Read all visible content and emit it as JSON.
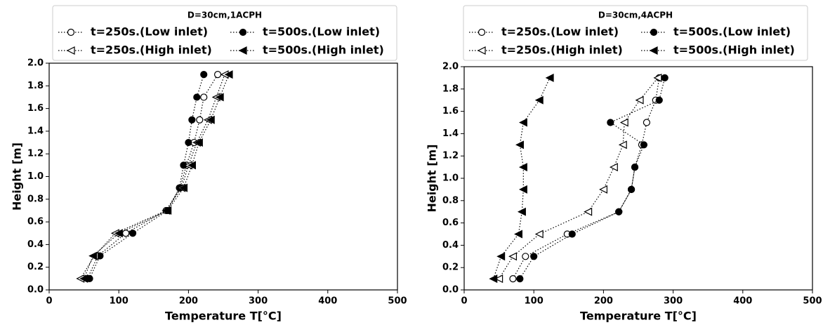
{
  "chart_data": [
    {
      "type": "line",
      "legend_title": "D=30cm,1ACPH",
      "xlabel": "Temperature T[°C]",
      "ylabel": "Height [m]",
      "y": [
        0.1,
        0.3,
        0.5,
        0.7,
        0.9,
        1.1,
        1.3,
        1.5,
        1.7,
        1.9
      ],
      "series": [
        {
          "name": "t=250s.(Low inlet)",
          "color": "#000000",
          "marker": "open-circle",
          "values": [
            55,
            70,
            110,
            168,
            188,
            197,
            208,
            216,
            222,
            242
          ]
        },
        {
          "name": "t=500s.(Low inlet)",
          "color": "#000000",
          "marker": "filled-circle",
          "values": [
            58,
            73,
            120,
            170,
            187,
            193,
            200,
            205,
            212,
            222
          ]
        },
        {
          "name": "t=250s.(High inlet)",
          "color": "#000000",
          "marker": "open-triangle-left",
          "values": [
            45,
            65,
            95,
            168,
            190,
            200,
            212,
            228,
            240,
            252
          ]
        },
        {
          "name": "t=500s.(High  inlet)",
          "color": "#000000",
          "marker": "filled-triangle-left",
          "values": [
            50,
            63,
            100,
            170,
            193,
            205,
            215,
            232,
            245,
            258
          ]
        }
      ],
      "xlim": [
        0,
        500
      ],
      "xticks": [
        0,
        100,
        200,
        300,
        400,
        500
      ],
      "ylim": [
        0,
        2
      ],
      "yticks": [
        {
          "value": 0,
          "label": "0.0"
        },
        0.2,
        0.4,
        0.6,
        0.8,
        {
          "value": 1,
          "label": "1.0"
        },
        1.2,
        1.4,
        1.6,
        1.8,
        {
          "value": 2,
          "label": "2.0"
        }
      ]
    },
    {
      "type": "line",
      "legend_title": "D=30cm,4ACPH",
      "xlabel": "Temperature T[°C]",
      "ylabel": "Height [m]",
      "y": [
        0.1,
        0.3,
        0.5,
        0.7,
        0.9,
        1.1,
        1.3,
        1.5,
        1.7,
        1.9
      ],
      "series": [
        {
          "name": "t=250s.(Low inlet)",
          "color": "#000000",
          "marker": "open-circle",
          "values": [
            70,
            88,
            148,
            222,
            240,
            245,
            255,
            262,
            275,
            280
          ]
        },
        {
          "name": "t=500s.(Low inlet)",
          "color": "#000000",
          "marker": "filled-circle",
          "values": [
            80,
            100,
            155,
            222,
            240,
            245,
            258,
            210,
            280,
            288
          ]
        },
        {
          "name": "t=250s.(High inlet)",
          "color": "#000000",
          "marker": "open-triangle-left",
          "values": [
            50,
            70,
            108,
            178,
            200,
            215,
            228,
            230,
            252,
            278
          ]
        },
        {
          "name": "t=500s.(High inlet)",
          "color": "#000000",
          "marker": "filled-triangle-left",
          "values": [
            42,
            53,
            78,
            83,
            85,
            85,
            80,
            85,
            108,
            123
          ]
        }
      ],
      "xlim": [
        0,
        500
      ],
      "xticks": [
        0,
        100,
        200,
        300,
        400,
        500
      ],
      "ylim": [
        0,
        2
      ],
      "yticks": [
        {
          "value": 0,
          "label": "0.0"
        },
        0.2,
        0.4,
        0.6,
        0.8,
        {
          "value": 1,
          "label": "1.0"
        },
        1.2,
        1.4,
        1.6,
        1.8,
        {
          "value": 2,
          "label": "2.0"
        }
      ]
    }
  ]
}
